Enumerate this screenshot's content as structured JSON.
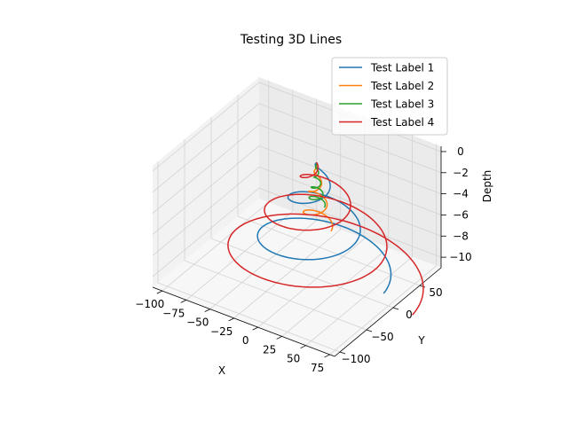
{
  "chart_data": {
    "type": "line",
    "projection": "3d",
    "title": "Testing 3D Lines",
    "xlabel": "X",
    "ylabel": "Y",
    "zlabel": "Depth",
    "xlim": [
      -110,
      80
    ],
    "ylim": [
      -110,
      90
    ],
    "zlim": [
      -11,
      0.5
    ],
    "xticks": [
      -100,
      -75,
      -50,
      -25,
      0,
      25,
      50,
      75
    ],
    "yticks": [
      -100,
      -50,
      0,
      50
    ],
    "zticks": [
      0,
      -2,
      -4,
      -6,
      -8,
      -10
    ],
    "grid": true,
    "legend_position": "top-right",
    "series": [
      {
        "name": "Test Label 1",
        "color": "#1f77b4",
        "shape": "spiral",
        "radius_max": 70,
        "turns": 2.5,
        "z_range": [
          -10,
          0
        ]
      },
      {
        "name": "Test Label 2",
        "color": "#ff7f0e",
        "shape": "spiral",
        "radius_max": 15,
        "turns": 3,
        "z_range": [
          -6,
          0
        ]
      },
      {
        "name": "Test Label 3",
        "color": "#2ca02c",
        "shape": "spiral",
        "radius_max": 8,
        "turns": 4,
        "z_range": [
          -4,
          0
        ]
      },
      {
        "name": "Test Label 4",
        "color": "#d62728",
        "shape": "spiral",
        "radius_max": 100,
        "turns": 3,
        "z_range": [
          -11,
          0
        ]
      }
    ]
  }
}
